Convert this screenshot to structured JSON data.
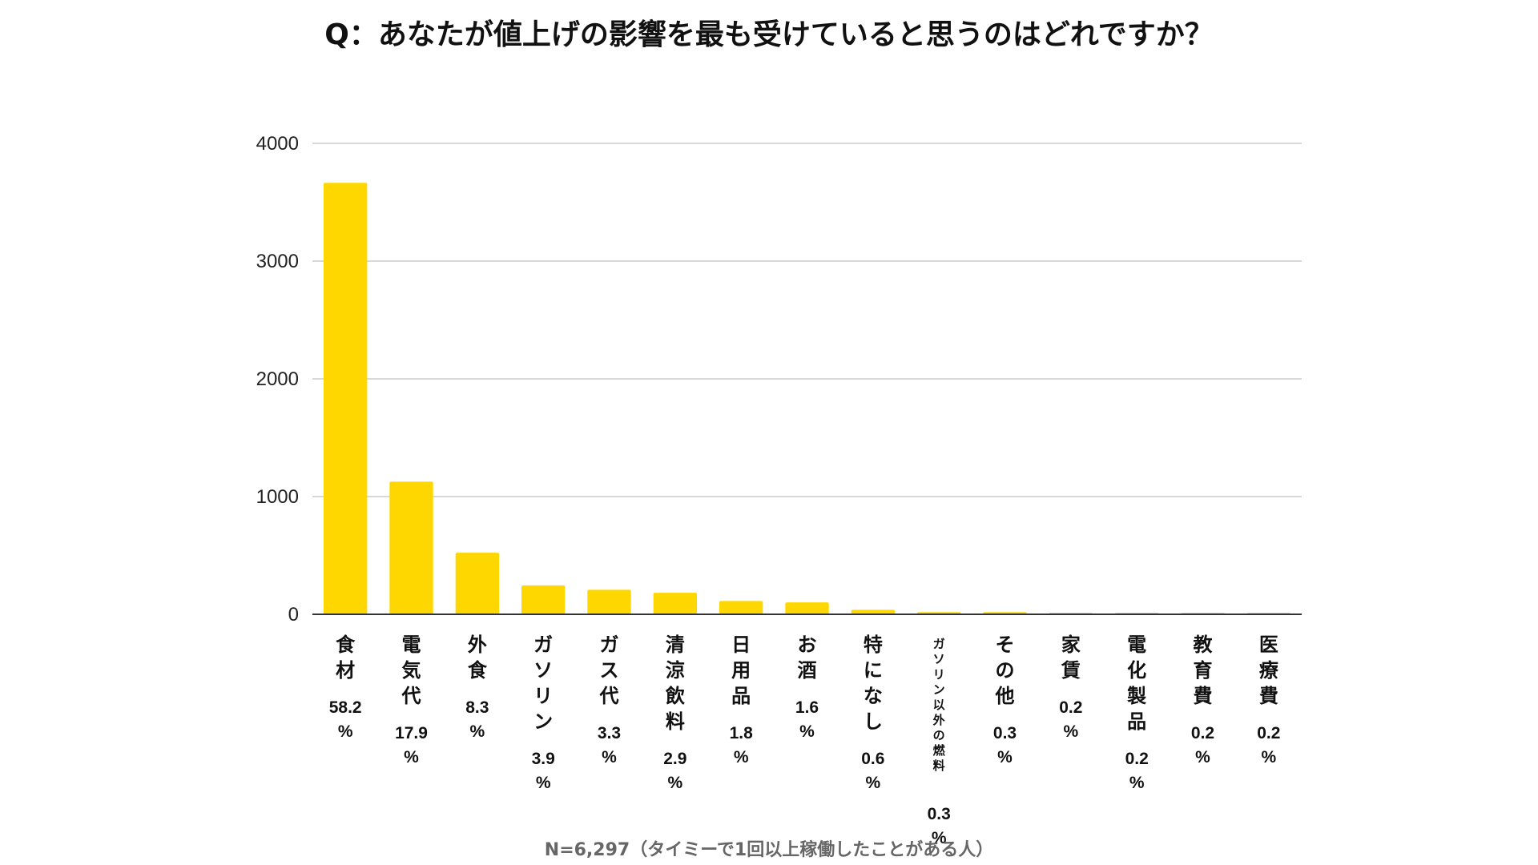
{
  "chart_data": {
    "type": "bar",
    "title": "Q：あなたが値上げの影響を最も受けていると思うのはどれですか？",
    "note": "N=6,297（タイミーで1回以上稼働したことがある人）",
    "categories": [
      "食材",
      "電気代",
      "外食",
      "ガソリン",
      "ガス代",
      "清涼飲料",
      "日用品",
      "お酒",
      "特になし",
      "ガソリン以外の燃料",
      "その他",
      "家賃",
      "電化製品",
      "教育費",
      "医療費"
    ],
    "values": [
      3665,
      1127,
      523,
      246,
      208,
      183,
      113,
      101,
      38,
      19,
      19,
      13,
      13,
      13,
      13
    ],
    "percent_labels": [
      "58.2",
      "17.9",
      "8.3",
      "3.9",
      "3.3",
      "2.9",
      "1.8",
      "1.6",
      "0.6",
      "0.3",
      "0.3",
      "0.2",
      "0.2",
      "0.2",
      "0.2"
    ],
    "percent_unit": "%",
    "xlabel": "",
    "ylabel": "",
    "ylim": [
      0,
      4000
    ],
    "yticks": [
      0,
      1000,
      2000,
      3000,
      4000
    ],
    "grid": true,
    "legend": "none",
    "bar_color": "#FFD700",
    "grid_color": "#CCCCCC",
    "axis_color": "#333333"
  }
}
